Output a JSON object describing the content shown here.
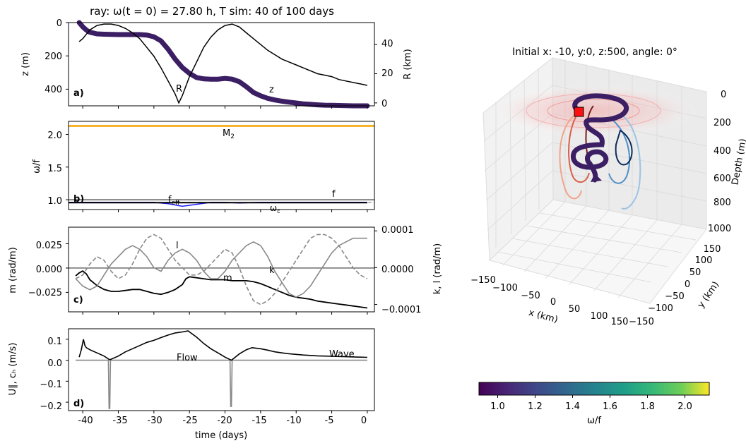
{
  "figure": {
    "suptitle": "ray: ω(t = 0) =  27.80 h, T sim: 40 of 100 days",
    "xlabel": "time (days)",
    "xticks": [
      -40,
      -35,
      -30,
      -25,
      -20,
      -15,
      -10,
      -5,
      0
    ]
  },
  "chart_data": [
    {
      "panel": "a)",
      "type": "line",
      "ylabel_left": "z (m)",
      "ylabel_right": "R (km)",
      "yticks_left": [
        "0",
        "200",
        "400"
      ],
      "yticks_right": [
        "0",
        "20",
        "40"
      ],
      "ylim_left": [
        500,
        0
      ],
      "ylim_right": [
        -2,
        55
      ],
      "xlim": [
        -42,
        1
      ],
      "annotations": [
        "R",
        "z"
      ],
      "series": [
        {
          "name": "z",
          "color": "#3b1e63",
          "axis": "left",
          "x": [
            -40.5,
            -40,
            -39.5,
            -39,
            -38,
            -37,
            -36,
            -35,
            -34,
            -33,
            -32,
            -31,
            -30,
            -29,
            -28,
            -27,
            -26,
            -25,
            -24,
            -23,
            -22,
            -21,
            -20,
            -19,
            -18,
            -17,
            -16,
            -15,
            -14,
            -13,
            -12,
            -11,
            -10,
            -9,
            -8,
            -7,
            -6,
            -5,
            -4,
            -3,
            -2,
            -1,
            0
          ],
          "y": [
            0,
            25,
            45,
            58,
            68,
            70,
            71,
            72,
            72,
            72,
            72,
            75,
            85,
            110,
            160,
            220,
            270,
            305,
            330,
            338,
            340,
            340,
            335,
            340,
            355,
            385,
            420,
            440,
            455,
            465,
            472,
            478,
            483,
            488,
            491,
            494,
            496,
            497,
            498,
            499,
            500,
            500,
            500
          ]
        },
        {
          "name": "R",
          "color": "#000000",
          "axis": "right",
          "x": [
            -40.5,
            -40,
            -39,
            -38,
            -37,
            -36,
            -35,
            -34,
            -33,
            -32,
            -31,
            -30,
            -29,
            -28,
            -27,
            -26.5,
            -26,
            -25,
            -24,
            -23,
            -22,
            -21,
            -20,
            -19,
            -18,
            -17,
            -16,
            -15,
            -14,
            -13,
            -12,
            -11,
            -10,
            -9,
            -8,
            -7,
            -6,
            -5,
            -4,
            -3,
            -2,
            -1,
            0
          ],
          "y": [
            42,
            44,
            50,
            53,
            54,
            54,
            53,
            51,
            48,
            44,
            38,
            32,
            24,
            15,
            6,
            0,
            5,
            18,
            28,
            38,
            45,
            50,
            53,
            54,
            52,
            48,
            44,
            40,
            36,
            33,
            30,
            28,
            26,
            24,
            22,
            20,
            19,
            18,
            16,
            15,
            14,
            13,
            12
          ]
        }
      ]
    },
    {
      "panel": "b)",
      "type": "line",
      "ylabel": "ω/f",
      "yticks": [
        "1.0",
        "1.5",
        "2.0"
      ],
      "ylim": [
        0.85,
        2.2
      ],
      "xlim": [
        -42,
        1
      ],
      "hlines": [
        {
          "name": "M2",
          "label": "M",
          "label_sub": "2",
          "y": 2.13,
          "color": "#f5a300"
        },
        {
          "name": "f",
          "label": "f",
          "y": 1.0,
          "color": "#000000"
        },
        {
          "name": "ωc",
          "label": "ω",
          "label_sub": "c",
          "y": 0.96,
          "color": "#777777",
          "dashed": true
        }
      ],
      "series": [
        {
          "name": "f_eff",
          "label": "f",
          "label_sub": "eff",
          "color": "#1a1aff",
          "x": [
            -42,
            -40,
            -35,
            -30,
            -28,
            -26,
            -24,
            -22,
            -20,
            -18,
            -15,
            -10,
            -5,
            0
          ],
          "y": [
            0.96,
            0.96,
            0.96,
            0.96,
            0.94,
            0.9,
            0.93,
            0.96,
            0.96,
            0.95,
            0.96,
            0.96,
            0.96,
            0.96
          ]
        },
        {
          "name": "omega",
          "color": "#000000",
          "x": [
            -42,
            -40,
            -35,
            -30,
            -25,
            -20,
            -15,
            -10,
            -5,
            0
          ],
          "y": [
            0.955,
            0.955,
            0.955,
            0.955,
            0.955,
            0.955,
            0.955,
            0.955,
            0.955,
            0.955
          ]
        }
      ]
    },
    {
      "panel": "c)",
      "type": "line",
      "ylabel_left": "m (rad/m)",
      "ylabel_right": "k, l (rad/m)",
      "yticks_left": [
        "−0.025",
        "0.000",
        "0.025"
      ],
      "yticks_right": [
        "−0.0001",
        "0.0000",
        "0.0001"
      ],
      "ylim_left": [
        -0.045,
        0.042
      ],
      "ylim_right": [
        -0.00012,
        0.00011
      ],
      "xlim": [
        -42,
        1
      ],
      "annotations": [
        "l",
        "m",
        "k"
      ],
      "series": [
        {
          "name": "m",
          "color": "#000000",
          "axis": "left",
          "x": [
            -41,
            -40.5,
            -40,
            -39.5,
            -39,
            -38,
            -37,
            -36,
            -35,
            -34,
            -33,
            -32,
            -31,
            -30,
            -29,
            -28,
            -27,
            -26,
            -25.5,
            -25,
            -24,
            -23,
            -22,
            -21,
            -20,
            -19,
            -18,
            -17,
            -16,
            -15,
            -14,
            -13,
            -12,
            -11,
            -10,
            -9,
            -8,
            -7,
            -6,
            -5,
            -4,
            -3,
            -2,
            -1,
            0
          ],
          "y": [
            -0.008,
            -0.005,
            -0.003,
            -0.006,
            -0.012,
            -0.018,
            -0.022,
            -0.024,
            -0.024,
            -0.023,
            -0.022,
            -0.022,
            -0.024,
            -0.026,
            -0.027,
            -0.025,
            -0.022,
            -0.017,
            -0.011,
            -0.009,
            -0.01,
            -0.011,
            -0.012,
            -0.012,
            -0.012,
            -0.013,
            -0.013,
            -0.013,
            -0.014,
            -0.016,
            -0.019,
            -0.022,
            -0.025,
            -0.028,
            -0.03,
            -0.031,
            -0.032,
            -0.034,
            -0.035,
            -0.036,
            -0.037,
            -0.038,
            -0.039,
            -0.04,
            -0.041
          ]
        },
        {
          "name": "l",
          "color": "#888888",
          "axis": "right",
          "x": [
            -41,
            -40,
            -39,
            -38,
            -37,
            -36,
            -35,
            -34,
            -33,
            -32,
            -31,
            -30,
            -29,
            -28,
            -27,
            -26,
            -25,
            -24,
            -23,
            -22,
            -21,
            -20,
            -19,
            -18,
            -17,
            -16,
            -15,
            -14,
            -13,
            -12,
            -11,
            -10,
            -9,
            -8,
            -7,
            -6,
            -5,
            -4,
            -3,
            -2,
            -1,
            0
          ],
          "y": [
            -3e-05,
            -5e-05,
            -6e-05,
            -5e-05,
            -2e-05,
            1e-05,
            3e-05,
            5e-05,
            6e-05,
            5e-05,
            3e-05,
            0.0,
            -1e-05,
            2e-05,
            4e-05,
            5e-05,
            4e-05,
            2e-05,
            -1e-05,
            -3e-05,
            -3e-05,
            -1e-05,
            2e-05,
            4e-05,
            6e-05,
            7e-05,
            6e-05,
            3e-05,
            -1e-05,
            -4e-05,
            -7e-05,
            -8e-05,
            -7e-05,
            -5e-05,
            -2e-05,
            1e-05,
            4e-05,
            6e-05,
            7e-05,
            8e-05,
            8e-05,
            8e-05
          ]
        },
        {
          "name": "k",
          "color": "#888888",
          "axis": "right",
          "dashed": true,
          "x": [
            -41,
            -40,
            -39,
            -38,
            -37,
            -36,
            -35,
            -34,
            -33,
            -32,
            -31,
            -30,
            -29,
            -28,
            -27,
            -26,
            -25,
            -24,
            -23,
            -22,
            -21,
            -20,
            -19,
            -18,
            -17,
            -16,
            -15,
            -14,
            -13,
            -12,
            -11,
            -10,
            -9,
            -8,
            -7,
            -6,
            -5,
            -4,
            -3,
            -2,
            -1,
            0
          ],
          "y": [
            -3e-05,
            -2e-05,
            1e-05,
            3e-05,
            2e-05,
            -1e-05,
            -3e-05,
            -2e-05,
            1e-05,
            5e-05,
            8e-05,
            9e-05,
            8e-05,
            5e-05,
            2e-05,
            0.0,
            -2e-05,
            -2e-05,
            -1e-05,
            1e-05,
            3e-05,
            5e-05,
            4e-05,
            0.0,
            -5e-05,
            -9e-05,
            -0.0001,
            -9e-05,
            -7e-05,
            -4e-05,
            -1e-05,
            2e-05,
            5e-05,
            8e-05,
            9e-05,
            9e-05,
            8e-05,
            6e-05,
            3e-05,
            0.0,
            -2e-05,
            -3e-05
          ]
        }
      ]
    },
    {
      "panel": "d)",
      "type": "line",
      "ylabel": "U∥, cₕ (m/s)",
      "yticks": [
        "−0.2",
        "−0.1",
        "0.0",
        "0.1"
      ],
      "ylim": [
        -0.24,
        0.15
      ],
      "xlim": [
        -42,
        1
      ],
      "annotations": [
        "Flow",
        "Wave"
      ],
      "series": [
        {
          "name": "Wave",
          "color": "#000000",
          "x": [
            -40.5,
            -40.2,
            -39.9,
            -39.7,
            -39.5,
            -39,
            -38,
            -37,
            -36.2,
            -35,
            -34,
            -33,
            -32,
            -31,
            -30,
            -29,
            -28,
            -27,
            -26,
            -25.2,
            -24,
            -23,
            -22,
            -21,
            -20,
            -19.1,
            -18,
            -17,
            -16.2,
            -15,
            -14,
            -13,
            -12,
            -11,
            -10,
            -9,
            -8,
            -7,
            -6,
            -5,
            -4,
            -3,
            -2,
            -1,
            0
          ],
          "y": [
            0.015,
            0.05,
            0.1,
            0.07,
            0.06,
            0.05,
            0.035,
            0.02,
            0.002,
            0.02,
            0.04,
            0.055,
            0.07,
            0.085,
            0.095,
            0.108,
            0.12,
            0.13,
            0.135,
            0.14,
            0.11,
            0.08,
            0.055,
            0.035,
            0.015,
            0.0,
            0.03,
            0.05,
            0.06,
            0.055,
            0.048,
            0.04,
            0.035,
            0.031,
            0.028,
            0.025,
            0.023,
            0.021,
            0.02,
            0.019,
            0.018,
            0.017,
            0.016,
            0.015,
            0.014
          ]
        },
        {
          "name": "Flow",
          "color": "#888888",
          "x": [
            -41,
            -36.4,
            -36.3,
            -36.2,
            -36.1,
            -19.3,
            -19.2,
            -19.1,
            -19.0,
            0
          ],
          "y": [
            0.0,
            0.0,
            -0.23,
            -0.23,
            0.0,
            0.0,
            -0.22,
            -0.22,
            0.0,
            0.0
          ]
        }
      ]
    },
    {
      "panel": "e)",
      "type": "line",
      "subtitle": "Initial x: -10, y:0, z:500, angle: 0°",
      "xlabel": "x (km)",
      "ylabel": "y (km)",
      "zlabel": "Depth (m)",
      "xticks": [
        "−150",
        "−100",
        "−50",
        "0",
        "50",
        "100",
        "150"
      ],
      "yticks": [
        "−150",
        "−100",
        "−50",
        "0",
        "50",
        "100",
        "150"
      ],
      "zticks": [
        "0",
        "200",
        "400",
        "600",
        "800",
        "1000"
      ]
    },
    {
      "type": "heatmap",
      "colorbar": true,
      "label": "ω/f",
      "ticks": [
        "1.0",
        "1.2",
        "1.4",
        "1.6",
        "1.8",
        "2.0"
      ],
      "range": [
        0.9,
        2.13
      ]
    }
  ]
}
